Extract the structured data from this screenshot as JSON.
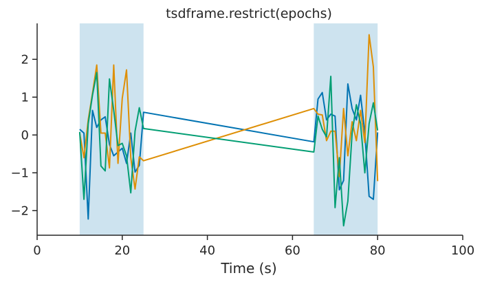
{
  "chart_data": {
    "type": "line",
    "title": "tsdframe.restrict(epochs)",
    "xlabel": "Time (s)",
    "ylabel": "",
    "xlim": [
      0,
      100
    ],
    "ylim": [
      -2.65,
      2.95
    ],
    "xticks": [
      0,
      20,
      40,
      60,
      80,
      100
    ],
    "xtick_labels": [
      "0",
      "20",
      "40",
      "60",
      "80",
      "100"
    ],
    "yticks": [
      -2,
      -1,
      0,
      1,
      2
    ],
    "ytick_labels": [
      "−2",
      "−1",
      "0",
      "1",
      "2"
    ],
    "grid": false,
    "epochs": [
      {
        "start": 10,
        "end": 25,
        "color": "#cde3ef"
      },
      {
        "start": 65,
        "end": 80,
        "color": "#cde3ef"
      }
    ],
    "x": [
      10,
      11,
      12,
      13,
      14,
      15,
      16,
      17,
      18,
      19,
      20,
      21,
      22,
      23,
      24,
      25,
      65,
      66,
      67,
      68,
      69,
      70,
      71,
      72,
      73,
      74,
      75,
      76,
      77,
      78,
      79,
      80
    ],
    "series": [
      {
        "color": "#0173b2",
        "values": [
          0.15,
          0.05,
          -2.22,
          0.65,
          0.2,
          0.4,
          0.48,
          -0.25,
          -0.55,
          -0.45,
          -0.35,
          -0.75,
          0.05,
          -0.98,
          -0.8,
          0.6,
          -0.18,
          0.95,
          1.12,
          0.4,
          0.55,
          0.5,
          -1.45,
          -1.2,
          1.35,
          0.7,
          0.4,
          1.05,
          0.05,
          -1.62,
          -1.7,
          0.07
        ]
      },
      {
        "color": "#de8f05",
        "values": [
          0.05,
          -0.6,
          0.4,
          1.1,
          1.85,
          0.05,
          0.05,
          -0.87,
          1.85,
          -0.75,
          0.97,
          1.72,
          -0.6,
          -1.43,
          -0.58,
          -0.68,
          0.7,
          0.55,
          0.53,
          -0.15,
          0.1,
          0.1,
          -1.1,
          0.7,
          -0.55,
          0.35,
          -0.15,
          0.65,
          -0.2,
          2.65,
          1.8,
          -1.22
        ]
      },
      {
        "color": "#029e73",
        "values": [
          0.08,
          -1.7,
          0.3,
          1.05,
          1.65,
          -0.82,
          -0.95,
          1.48,
          0.65,
          -0.28,
          -0.22,
          -0.55,
          -1.53,
          0.1,
          0.72,
          0.17,
          -0.45,
          0.5,
          0.15,
          -0.05,
          1.55,
          -1.92,
          -0.6,
          -2.4,
          -1.75,
          0.05,
          0.8,
          0.3,
          -1.0,
          0.3,
          0.85,
          0.12
        ]
      }
    ]
  }
}
